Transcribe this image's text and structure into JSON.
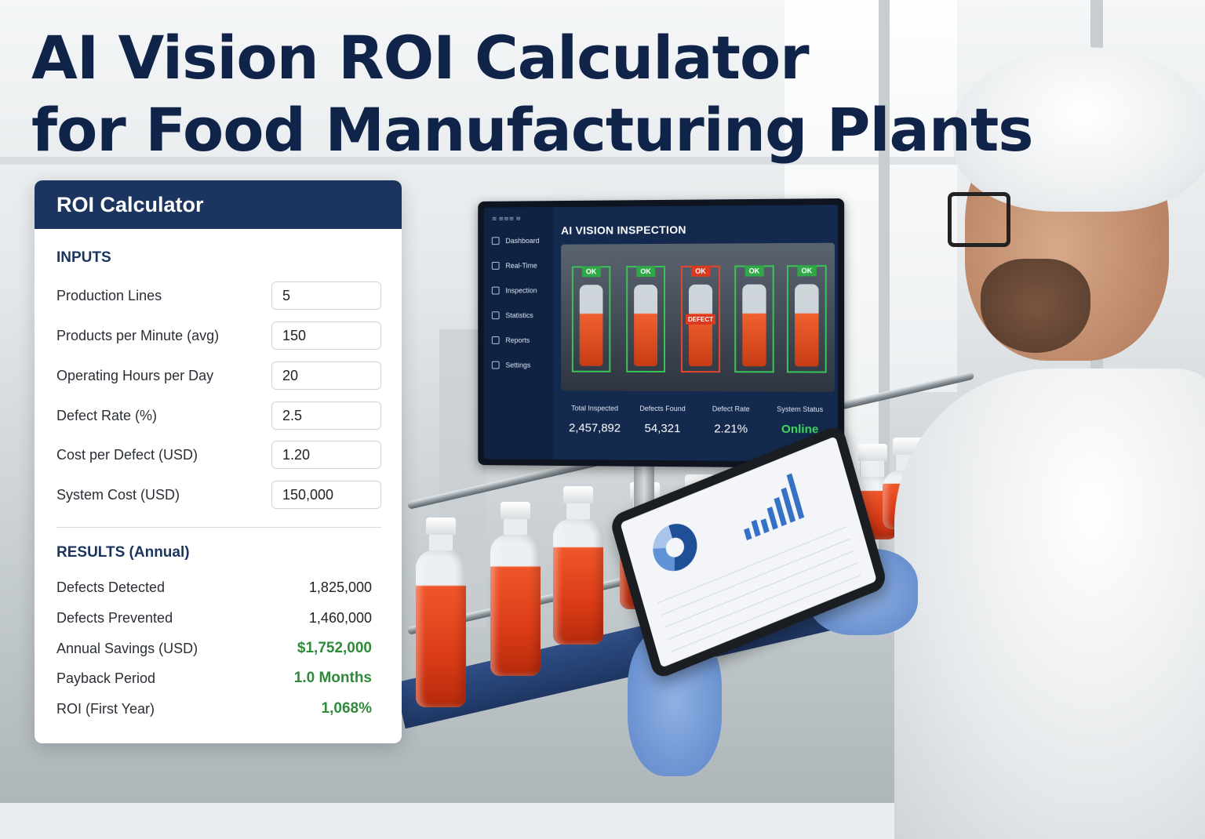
{
  "headline": {
    "line1": "AI Vision ROI Calculator",
    "line2": "for Food Manufacturing Plants"
  },
  "calculator": {
    "title": "ROI Calculator",
    "inputs_heading": "INPUTS",
    "inputs": [
      {
        "label": "Production Lines",
        "value": "5"
      },
      {
        "label": "Products per Minute (avg)",
        "value": "150"
      },
      {
        "label": "Operating Hours per Day",
        "value": "20"
      },
      {
        "label": "Defect Rate (%)",
        "value": "2.5"
      },
      {
        "label": "Cost per Defect (USD)",
        "value": "1.20"
      },
      {
        "label": "System Cost (USD)",
        "value": "150,000"
      }
    ],
    "results_heading": "RESULTS (Annual)",
    "results": [
      {
        "label": "Defects Detected",
        "value": "1,825,000"
      },
      {
        "label": "Defects Prevented",
        "value": "1,460,000"
      },
      {
        "label": "Annual Savings (USD)",
        "value": "$1,752,000"
      },
      {
        "label": "Payback Period",
        "value": "1.0 Months"
      },
      {
        "label": "ROI (First Year)",
        "value": "1,068%"
      }
    ]
  },
  "monitor": {
    "logo": "≋ ≋≋≋ ≋",
    "title": "AI VISION INSPECTION",
    "nav": [
      "Dashboard",
      "Real-Time",
      "Inspection",
      "Statistics",
      "Reports",
      "Settings"
    ],
    "camera": {
      "tags": [
        "OK",
        "OK",
        "OK",
        "OK",
        "OK"
      ],
      "defect_label": "DEFECT"
    },
    "stats": [
      {
        "label": "Total Inspected",
        "value": "2,457,892"
      },
      {
        "label": "Defects Found",
        "value": "54,321"
      },
      {
        "label": "Defect Rate",
        "value": "2.21%"
      },
      {
        "label": "System Status",
        "value": "Online"
      }
    ]
  },
  "colors": {
    "navy": "#1b3560",
    "headline": "#10244a",
    "positive_green": "#2e8b3a",
    "ok_green": "#37c553",
    "defect_red": "#e5462b"
  }
}
